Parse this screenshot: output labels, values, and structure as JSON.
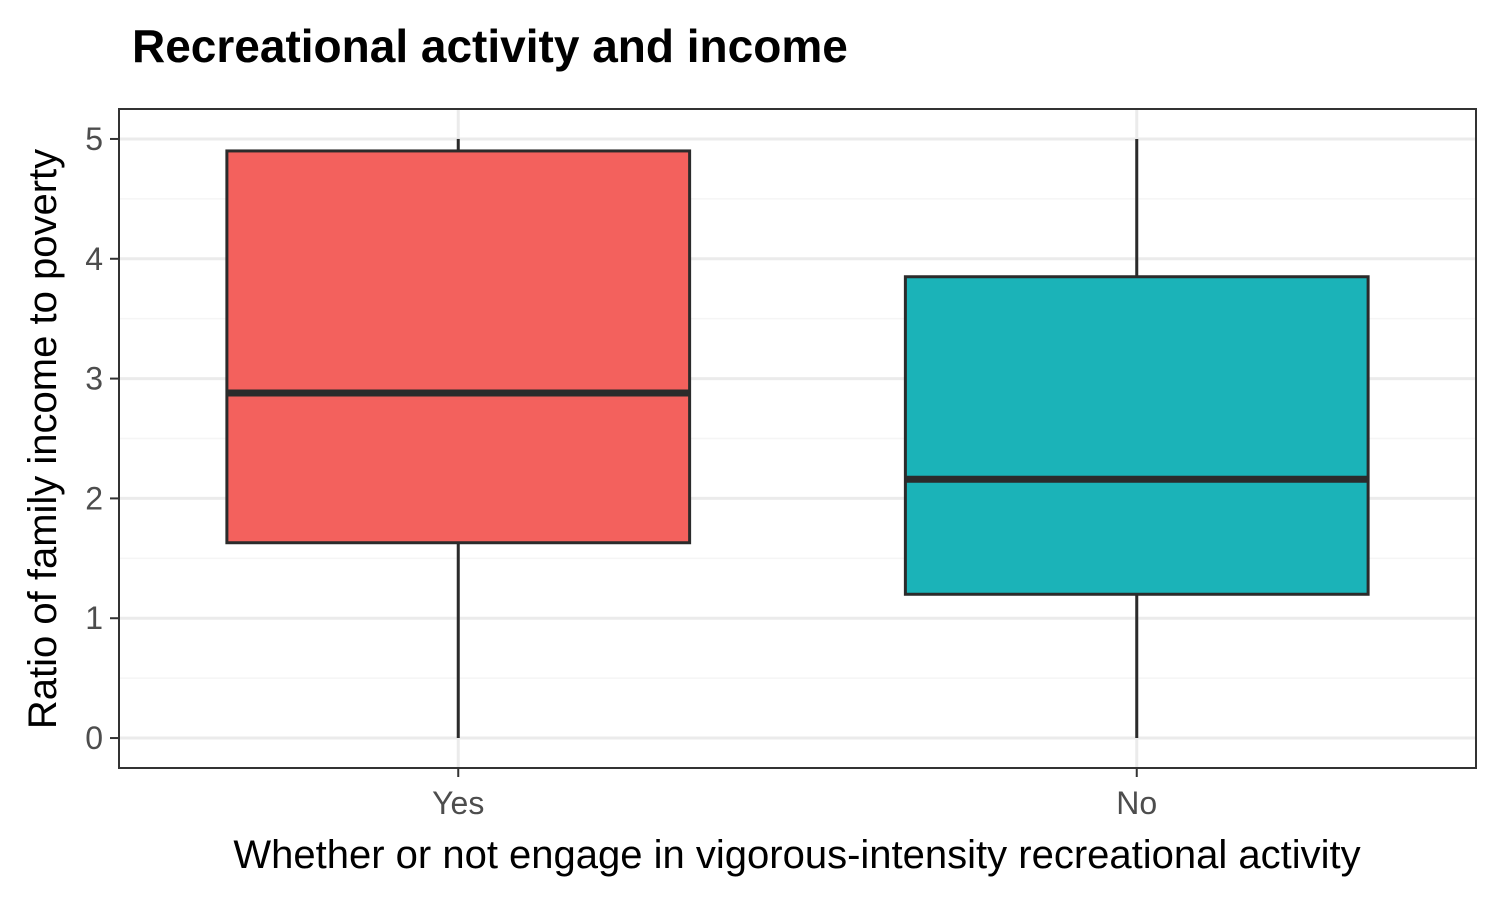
{
  "chart_data": {
    "type": "boxplot",
    "title": "Recreational activity and income",
    "xlabel": "Whether or not engage in vigorous-intensity recreational activity",
    "ylabel": "Ratio of family income to poverty",
    "ylim": [
      -0.25,
      5.25
    ],
    "yticks": [
      0,
      1,
      2,
      3,
      4,
      5
    ],
    "ytick_labels": [
      "0",
      "1",
      "2",
      "3",
      "4",
      "5"
    ],
    "grid": true,
    "legend": "none",
    "categories": [
      "Yes",
      "No"
    ],
    "boxes": [
      {
        "category": "Yes",
        "min": 0,
        "q1": 1.63,
        "median": 2.88,
        "q3": 4.9,
        "max": 5,
        "color": "#F3615D"
      },
      {
        "category": "No",
        "min": 0,
        "q1": 1.2,
        "median": 2.16,
        "q3": 3.85,
        "max": 5,
        "color": "#1BB3B8"
      }
    ]
  },
  "colors": {
    "panel_border": "#333333",
    "grid_major": "#EBEBEB",
    "grid_minor": "#F5F5F5",
    "box_outline": "#2B2B2B",
    "tick_text": "#4D4D4D"
  }
}
